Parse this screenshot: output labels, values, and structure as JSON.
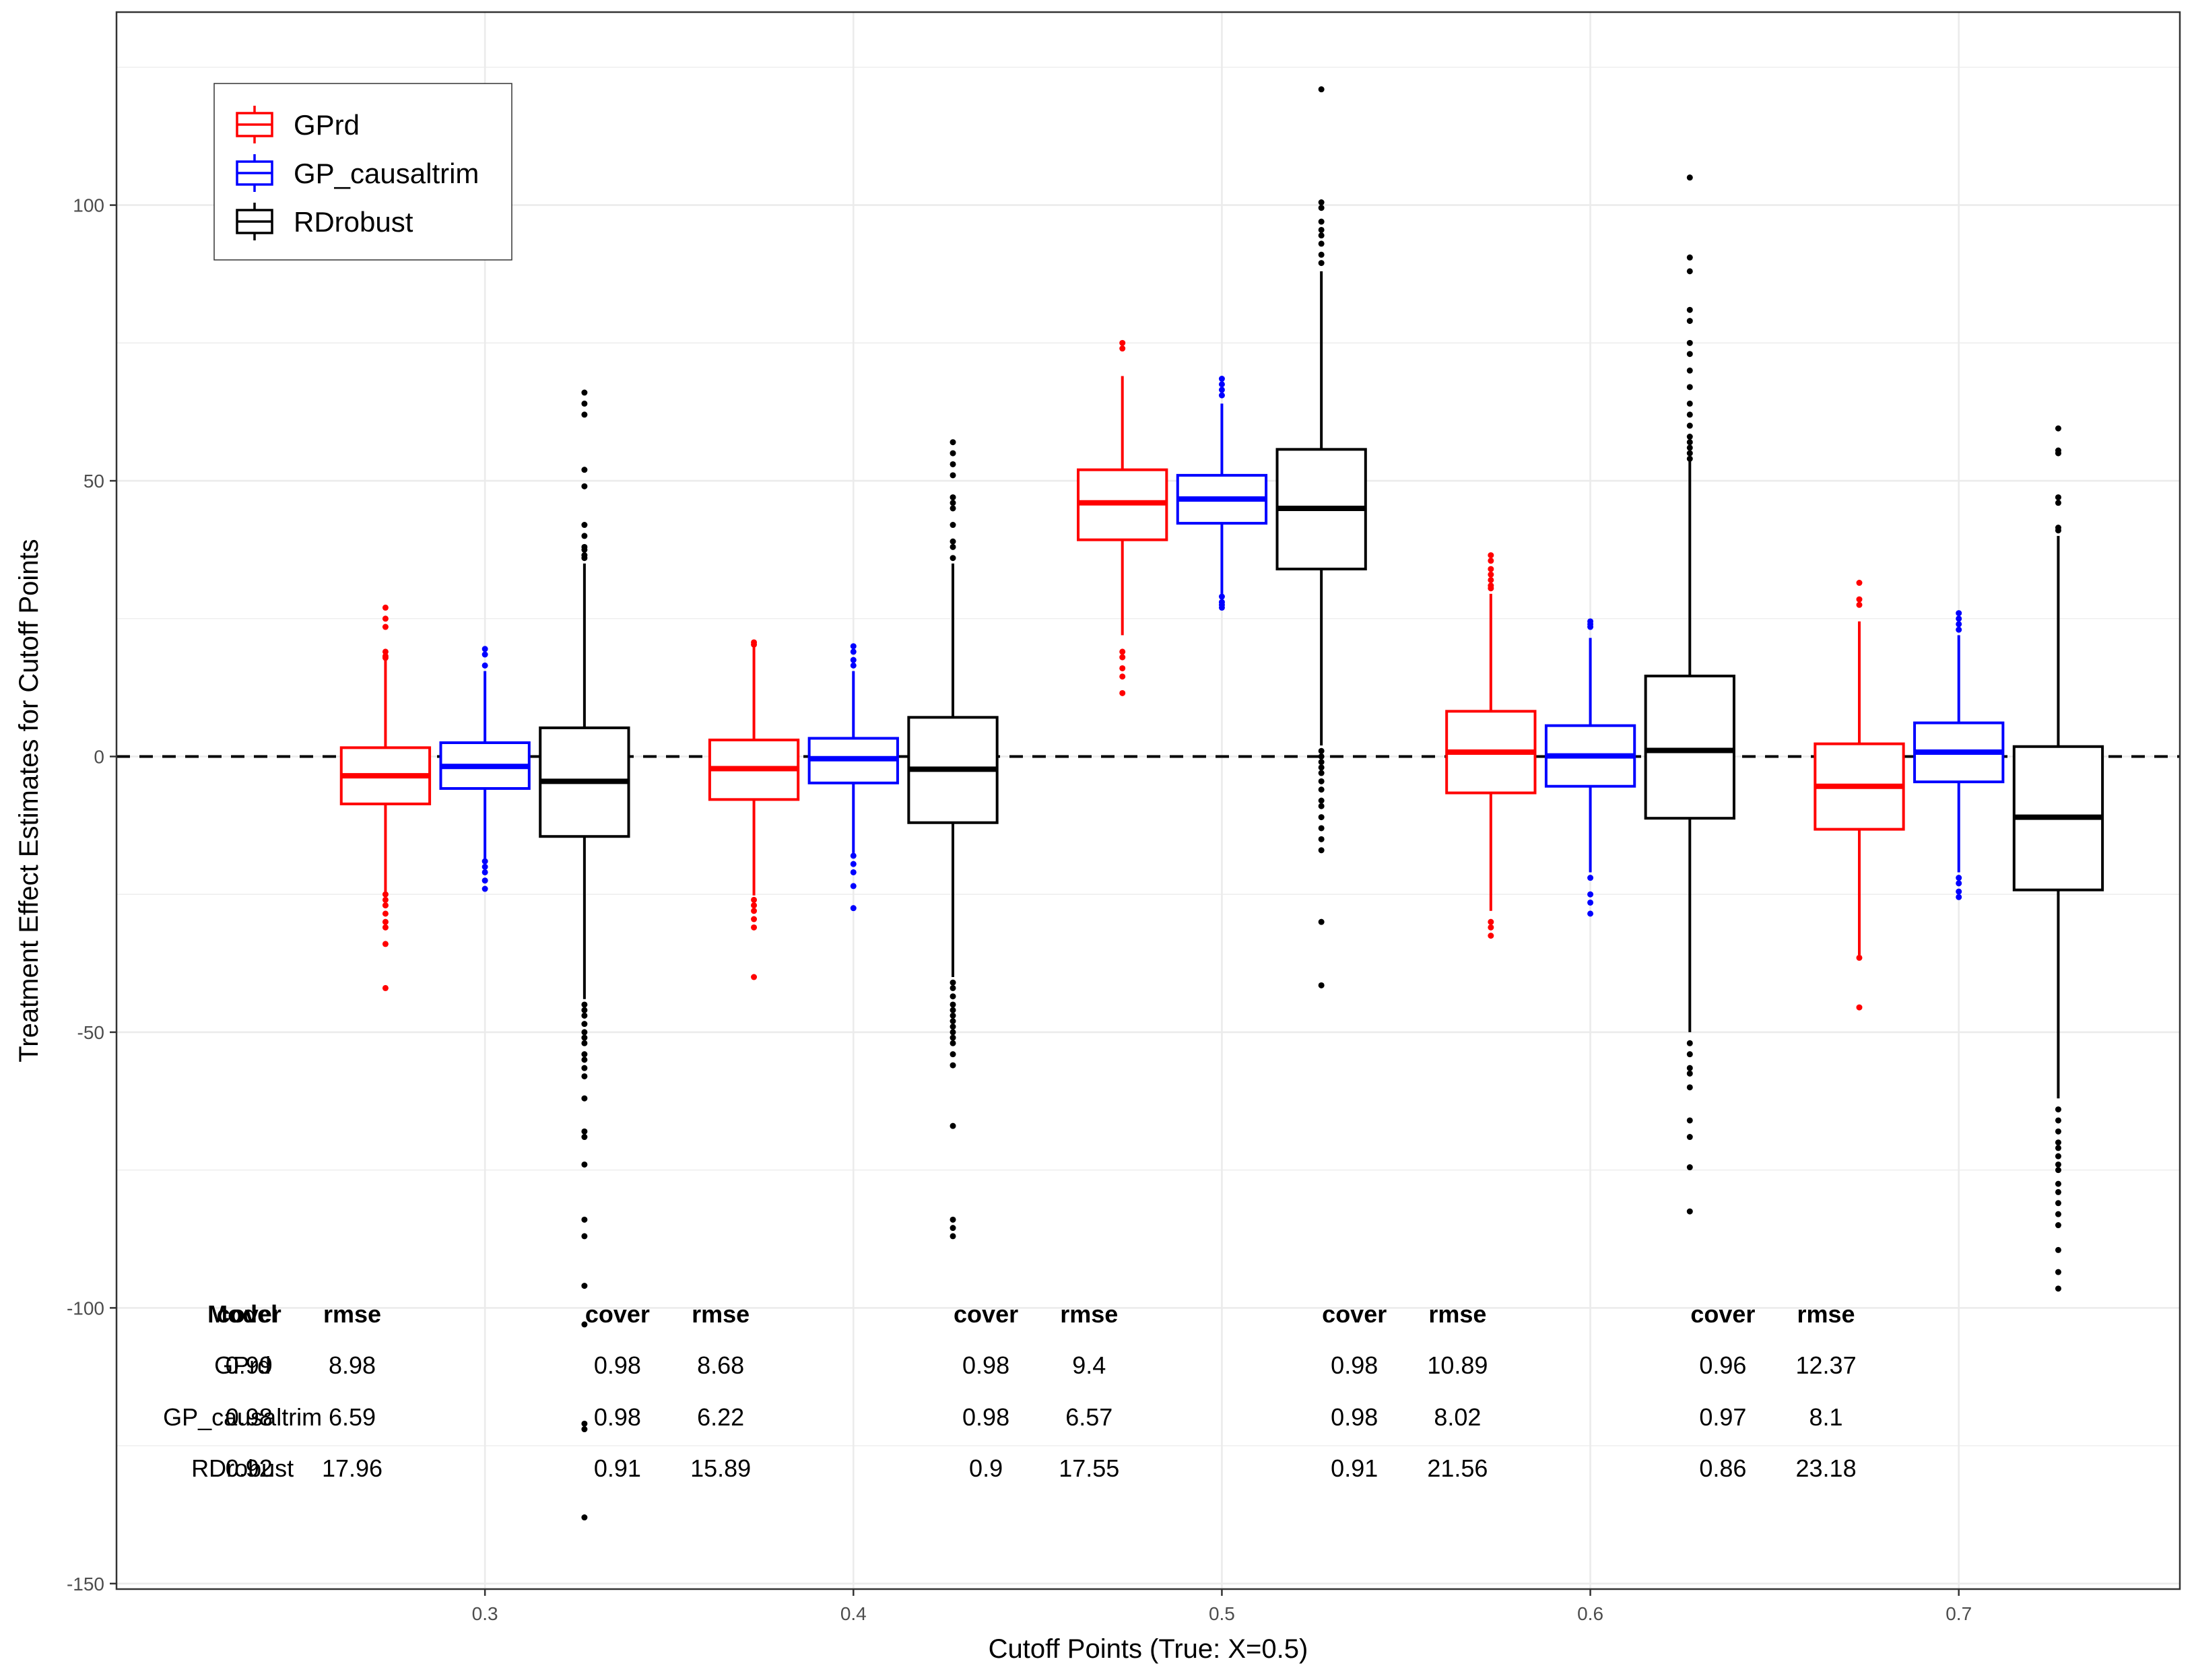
{
  "chart_data": {
    "type": "boxplot",
    "title": "",
    "xlabel": "Cutoff Points (True: X=0.5)",
    "ylabel": "Treatment Effect Estimates for Cutoff Points",
    "ylim": [
      -151,
      135
    ],
    "yticks": [
      100,
      50,
      0,
      -50,
      -100,
      -150
    ],
    "ytick_labels": [
      "100",
      "50",
      "0",
      "-50",
      "-100",
      "-150"
    ],
    "xlim": [
      0.2,
      0.76
    ],
    "categories": [
      0.3,
      0.4,
      0.5,
      0.6,
      0.7
    ],
    "category_labels": [
      "0.3",
      "0.4",
      "0.5",
      "0.6",
      "0.7"
    ],
    "reference_line": 0,
    "legend": {
      "position": "top-left",
      "entries": [
        {
          "name": "GPrd",
          "color": "#ff0000"
        },
        {
          "name": "GP_causaltrim",
          "color": "#0000ff"
        },
        {
          "name": "RDrobust",
          "color": "#000000"
        }
      ]
    },
    "series": [
      {
        "name": "GPrd",
        "color": "#ff0000",
        "offset": -0.027,
        "boxes": [
          {
            "q1": -8.6,
            "median": -3.5,
            "q3": 1.6,
            "whislo": -24.5,
            "whishi": 17.5,
            "outliers": [
              27,
              25,
              23.5,
              19,
              18.2,
              17.9,
              -25,
              -26,
              -27,
              -28.5,
              -30,
              -31,
              -34,
              -42
            ]
          },
          {
            "q1": -7.8,
            "median": -2.2,
            "q3": 3.0,
            "whislo": -25.2,
            "whishi": 19.8,
            "outliers": [
              20.7,
              20.3,
              -26,
              -27,
              -28,
              -29.5,
              -31,
              -40
            ]
          },
          {
            "q1": 39.3,
            "median": 46.0,
            "q3": 52.0,
            "whislo": 22.0,
            "whishi": 69.0,
            "outliers": [
              75,
              74,
              19,
              18,
              16,
              14.5,
              11.5
            ]
          },
          {
            "q1": -6.6,
            "median": 0.8,
            "q3": 8.2,
            "whislo": -28.0,
            "whishi": 29.5,
            "outliers": [
              36.5,
              35.5,
              34,
              33,
              32,
              31,
              30.5,
              -30,
              -31,
              -32.5
            ]
          },
          {
            "q1": -13.2,
            "median": -5.4,
            "q3": 2.3,
            "whislo": -36.0,
            "whishi": 24.5,
            "outliers": [
              31.5,
              28.5,
              27.5,
              -36.5,
              -45.5
            ]
          }
        ]
      },
      {
        "name": "GP_causaltrim",
        "color": "#0000ff",
        "offset": 0.0,
        "boxes": [
          {
            "q1": -5.8,
            "median": -1.8,
            "q3": 2.5,
            "whislo": -18.5,
            "whishi": 15.5,
            "outliers": [
              19.5,
              18.5,
              16.5,
              -19,
              -20,
              -21,
              -22.5,
              -24
            ]
          },
          {
            "q1": -4.8,
            "median": -0.4,
            "q3": 3.3,
            "whislo": -17.5,
            "whishi": 15.5,
            "outliers": [
              20,
              19,
              17.5,
              16.5,
              -18,
              -19.5,
              -21,
              -23.5,
              -27.5
            ]
          },
          {
            "q1": 42.3,
            "median": 46.7,
            "q3": 51.0,
            "whislo": 29.5,
            "whishi": 64.0,
            "outliers": [
              68.5,
              67.5,
              66.5,
              65.5,
              29,
              28,
              27.5,
              27
            ]
          },
          {
            "q1": -5.4,
            "median": 0.1,
            "q3": 5.6,
            "whislo": -21.0,
            "whishi": 21.5,
            "outliers": [
              24.5,
              24,
              23.5,
              -22,
              -25,
              -26.5,
              -28.5
            ]
          },
          {
            "q1": -4.6,
            "median": 0.8,
            "q3": 6.1,
            "whislo": -21.0,
            "whishi": 22.0,
            "outliers": [
              26,
              25,
              24,
              23,
              -22,
              -23,
              -24.5,
              -25.5
            ]
          }
        ]
      },
      {
        "name": "RDrobust",
        "color": "#000000",
        "offset": 0.027,
        "boxes": [
          {
            "q1": -14.5,
            "median": -4.5,
            "q3": 5.2,
            "whislo": -44.0,
            "whishi": 35.0,
            "outliers": [
              66,
              64,
              62,
              52,
              49,
              42,
              40,
              38,
              37.5,
              36.5,
              36,
              -45,
              -46,
              -47,
              -48.5,
              -50,
              -51,
              -52,
              -54,
              -55,
              -56.5,
              -58,
              -62,
              -68,
              -69,
              -74,
              -84,
              -87,
              -96,
              -103,
              -121,
              -122,
              -138
            ]
          },
          {
            "q1": -12.0,
            "median": -2.3,
            "q3": 7.1,
            "whislo": -40.0,
            "whishi": 35.0,
            "outliers": [
              57,
              55,
              53,
              51,
              47,
              46,
              45,
              42,
              39,
              38,
              36,
              -41,
              -42,
              -43.5,
              -45,
              -46,
              -47,
              -48,
              -49,
              -50,
              -51,
              -52,
              -54,
              -56,
              -67,
              -84,
              -85.5,
              -87
            ]
          },
          {
            "q1": 34.0,
            "median": 45.0,
            "q3": 55.7,
            "whislo": 2.0,
            "whishi": 88.0,
            "outliers": [
              121,
              100.5,
              99.5,
              97,
              95.5,
              94.5,
              93,
              91,
              89.5,
              1,
              0,
              -1,
              -2,
              -3,
              -4.5,
              -6,
              -8,
              -9,
              -11,
              -13,
              -15,
              -17,
              -30,
              -41.5
            ]
          },
          {
            "q1": -11.2,
            "median": 1.1,
            "q3": 14.6,
            "whislo": -50.0,
            "whishi": 53.5,
            "outliers": [
              105,
              90.5,
              88,
              81,
              79,
              75,
              73,
              70,
              67,
              64,
              62,
              60,
              58,
              57,
              56,
              55,
              54,
              -52,
              -54,
              -56.5,
              -57.5,
              -60,
              -66,
              -69,
              -74.5,
              -82.5
            ]
          },
          {
            "q1": -24.2,
            "median": -11.0,
            "q3": 1.8,
            "whislo": -62.0,
            "whishi": 40.0,
            "outliers": [
              59.5,
              55.5,
              55,
              47,
              46,
              41.5,
              41,
              -64,
              -66,
              -68,
              -70,
              -71,
              -72.5,
              -74,
              -75,
              -77.5,
              -79,
              -81,
              -83,
              -85,
              -89.5,
              -93.5,
              -96.5
            ]
          }
        ]
      }
    ],
    "table": {
      "header": {
        "model": "Model",
        "cover": "cover",
        "rmse": "rmse"
      },
      "models": [
        "GPrd",
        "GP_causaltrim",
        "RDrobust"
      ],
      "groups": [
        {
          "cutoff": 0.3,
          "rows": [
            {
              "cover": "0.99",
              "rmse": "8.98"
            },
            {
              "cover": "0.98",
              "rmse": "6.59"
            },
            {
              "cover": "0.92",
              "rmse": "17.96"
            }
          ]
        },
        {
          "cutoff": 0.4,
          "rows": [
            {
              "cover": "0.98",
              "rmse": "8.68"
            },
            {
              "cover": "0.98",
              "rmse": "6.22"
            },
            {
              "cover": "0.91",
              "rmse": "15.89"
            }
          ]
        },
        {
          "cutoff": 0.5,
          "rows": [
            {
              "cover": "0.98",
              "rmse": "9.4"
            },
            {
              "cover": "0.98",
              "rmse": "6.57"
            },
            {
              "cover": "0.9",
              "rmse": "17.55"
            }
          ]
        },
        {
          "cutoff": 0.6,
          "rows": [
            {
              "cover": "0.98",
              "rmse": "10.89"
            },
            {
              "cover": "0.98",
              "rmse": "8.02"
            },
            {
              "cover": "0.91",
              "rmse": "21.56"
            }
          ]
        },
        {
          "cutoff": 0.7,
          "rows": [
            {
              "cover": "0.96",
              "rmse": "12.37"
            },
            {
              "cover": "0.97",
              "rmse": "8.1"
            },
            {
              "cover": "0.86",
              "rmse": "23.18"
            }
          ]
        }
      ]
    }
  }
}
